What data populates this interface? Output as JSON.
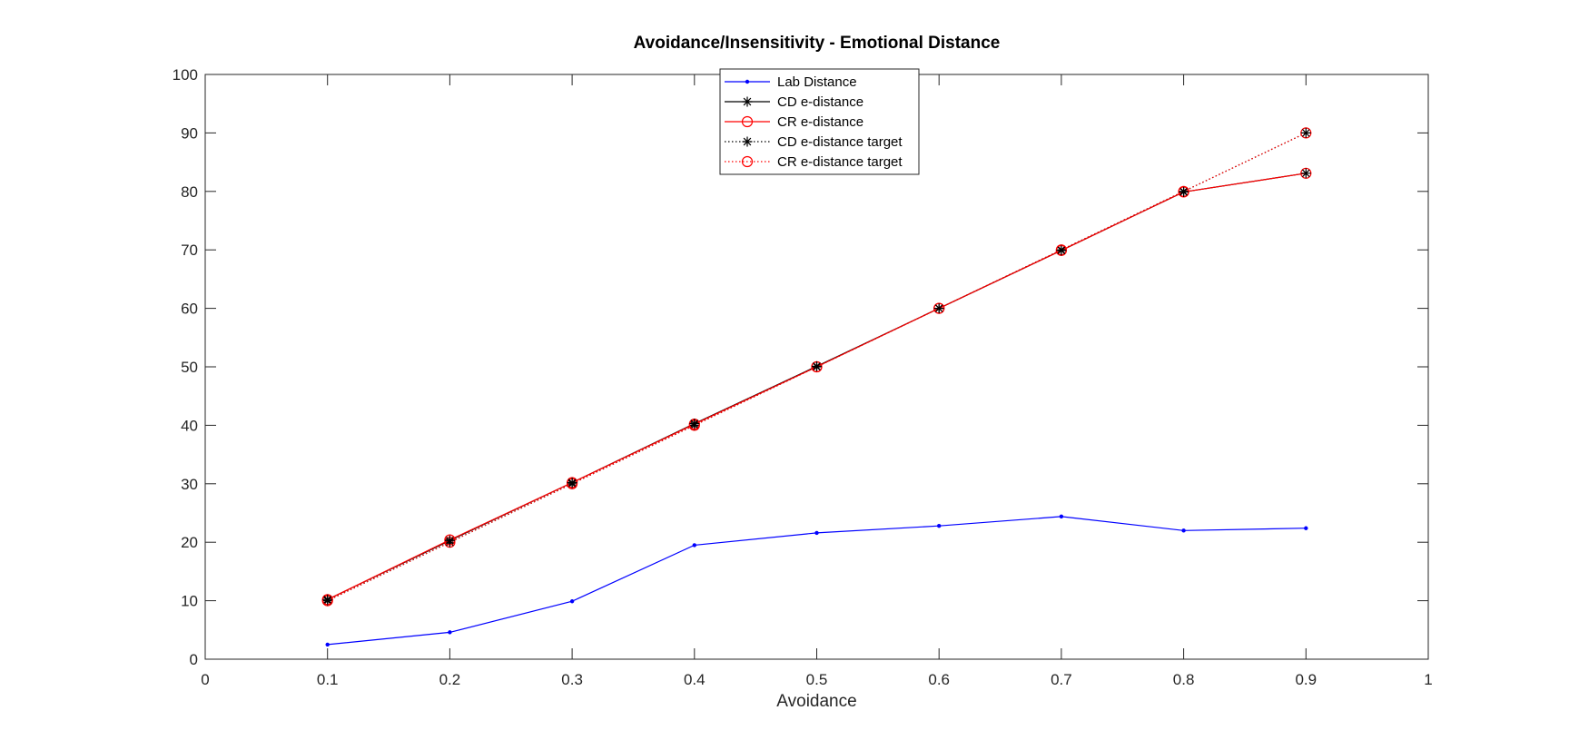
{
  "chart_data": {
    "type": "line",
    "title": "Avoidance/Insensitivity - Emotional Distance",
    "xlabel": "Avoidance",
    "ylabel": "",
    "xlim": [
      0,
      1
    ],
    "ylim": [
      0,
      100
    ],
    "x_ticks": [
      0,
      0.1,
      0.2,
      0.3,
      0.4,
      0.5,
      0.6,
      0.7,
      0.8,
      0.9,
      1
    ],
    "x_tick_labels": [
      "0",
      "0.1",
      "0.2",
      "0.3",
      "0.4",
      "0.5",
      "0.6",
      "0.7",
      "0.8",
      "0.9",
      "1"
    ],
    "y_ticks": [
      0,
      10,
      20,
      30,
      40,
      50,
      60,
      70,
      80,
      90,
      100
    ],
    "y_tick_labels": [
      "0",
      "10",
      "20",
      "30",
      "40",
      "50",
      "60",
      "70",
      "80",
      "90",
      "100"
    ],
    "grid": false,
    "legend_position": "top-center",
    "x": [
      0.1,
      0.2,
      0.3,
      0.4,
      0.5,
      0.6,
      0.7,
      0.8,
      0.9
    ],
    "series": [
      {
        "name": "Lab Distance",
        "color": "#0000ff",
        "line": "solid",
        "marker": "dot",
        "values": [
          2.5,
          4.6,
          9.9,
          19.5,
          21.6,
          22.8,
          24.4,
          22.0,
          22.4
        ]
      },
      {
        "name": "CD e-distance",
        "color": "#000000",
        "line": "solid",
        "marker": "star",
        "values": [
          10.2,
          20.3,
          30.2,
          40.3,
          50.1,
          60.0,
          69.9,
          79.9,
          83.1
        ]
      },
      {
        "name": "CR e-distance",
        "color": "#ff0000",
        "line": "solid",
        "marker": "circle",
        "values": [
          10.2,
          20.4,
          30.2,
          40.2,
          50.0,
          60.0,
          69.9,
          79.9,
          83.1
        ]
      },
      {
        "name": "CD e-distance target",
        "color": "#000000",
        "line": "dotted",
        "marker": "star",
        "values": [
          10,
          20,
          30,
          40,
          50,
          60,
          70,
          80,
          90
        ]
      },
      {
        "name": "CR e-distance target",
        "color": "#ff0000",
        "line": "dotted",
        "marker": "circle",
        "values": [
          10,
          20,
          30,
          40,
          50,
          60,
          70,
          80,
          90
        ]
      }
    ]
  }
}
